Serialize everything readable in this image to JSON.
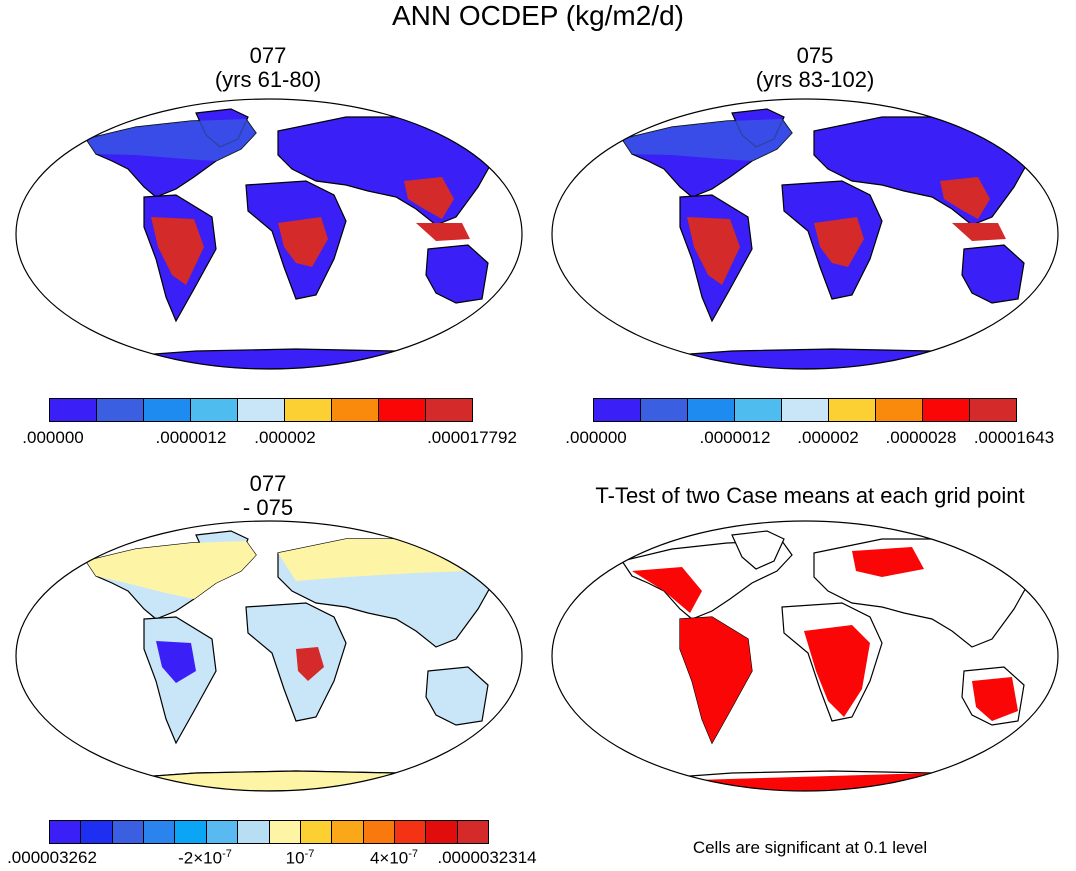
{
  "main_title": "ANN OCDEP (kg/m2/d)",
  "panels": {
    "p1": {
      "line1": "077",
      "line2": "(yrs 61-80)"
    },
    "p2": {
      "line1": "075",
      "line2": "(yrs 83-102)"
    },
    "p3": {
      "line1": "077",
      "line2": "- 075"
    },
    "p4": {
      "title": "T-Test of two Case means at each grid point"
    }
  },
  "colorbars": {
    "cb1": {
      "colors": [
        "#3a1ff7",
        "#3a5fe0",
        "#1e8bf0",
        "#4fbcf0",
        "#c8e6f8",
        "#fcd033",
        "#f98a0c",
        "#fb0606",
        "#d42a2a"
      ],
      "labels": [
        ".000000",
        ".0000012",
        ".000002",
        ".000017792"
      ]
    },
    "cb2": {
      "colors": [
        "#3a1ff7",
        "#3a5fe0",
        "#1e8bf0",
        "#4fbcf0",
        "#c8e6f8",
        "#fcd033",
        "#f98a0c",
        "#fb0606",
        "#d42a2a"
      ],
      "labels": [
        ".000000",
        ".0000012",
        ".000002",
        ".0000028",
        ".00001643"
      ]
    },
    "cb3": {
      "colors": [
        "#3a1ff7",
        "#1f2ff2",
        "#3a5fe0",
        "#2b83ee",
        "#0aa6f5",
        "#58baf0",
        "#b8def4",
        "#fdf4a6",
        "#fcd033",
        "#faa81a",
        "#f9790f",
        "#f43214",
        "#e10d0d",
        "#d42a2a"
      ],
      "labels": [
        ".000003262",
        "-2×10",
        "10",
        "4×10",
        ".0000032314"
      ],
      "exponents": [
        "-7",
        "-7",
        "-7"
      ]
    }
  },
  "note": "Cells are significant at 0.1 level",
  "map_colors": {
    "ocean": "#ffffff",
    "land_low": "#3a1ff7",
    "land_mid": "#3a5fe0",
    "land_high": "#d42a2a",
    "diff_base": "#c8e6f8",
    "diff_yellow": "#fdf4a6",
    "sig": "#fb0606"
  }
}
